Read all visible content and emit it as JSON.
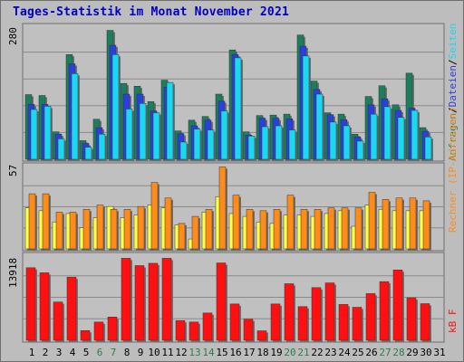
{
  "title": "Tages-Statistik im Monat November 2021",
  "colors": {
    "anfragen": "#1b7f5e",
    "dateien": "#2a3fe0",
    "seiten": "#1ad8f0",
    "rechner": "#ffff44",
    "besuche": "#ff8c1a",
    "kbf": "#ff0f0f",
    "weekend_day": "#2a7f4a",
    "weekday": "#000000"
  },
  "right_labels": {
    "top": [
      "Anfragen",
      "/",
      "Dateien",
      "/",
      "Seiten"
    ],
    "middle": "Rechner (IP-Adressen)",
    "bottom": "kB F"
  },
  "chart_data": [
    {
      "type": "bar",
      "ymax_label": "280",
      "ylim": [
        0,
        280
      ],
      "categories": [
        "1",
        "2",
        "3",
        "4",
        "5",
        "6",
        "7",
        "8",
        "9",
        "10",
        "11",
        "12",
        "13",
        "14",
        "15",
        "16",
        "17",
        "18",
        "19",
        "20",
        "21",
        "22",
        "23",
        "24",
        "25",
        "26",
        "27",
        "28",
        "29",
        "30"
      ],
      "weekend": [
        "6",
        "7",
        "13",
        "14",
        "20",
        "21",
        "27",
        "28"
      ],
      "series": [
        {
          "name": "Anfragen",
          "values": [
            139,
            137,
            59,
            225,
            40,
            86,
            277,
            163,
            157,
            124,
            170,
            61,
            84,
            92,
            140,
            235,
            59,
            94,
            95,
            97,
            267,
            168,
            100,
            97,
            54,
            135,
            158,
            117,
            185,
            68
          ]
        },
        {
          "name": "Dateien",
          "values": [
            118,
            118,
            54,
            205,
            34,
            68,
            245,
            140,
            140,
            104,
            155,
            55,
            72,
            84,
            125,
            225,
            52,
            88,
            88,
            87,
            243,
            150,
            96,
            85,
            48,
            117,
            130,
            105,
            110,
            60
          ]
        },
        {
          "name": "Seiten",
          "values": [
            107,
            114,
            44,
            184,
            26,
            54,
            225,
            108,
            120,
            100,
            165,
            37,
            65,
            63,
            104,
            218,
            50,
            70,
            72,
            63,
            222,
            140,
            80,
            72,
            39,
            97,
            113,
            90,
            105,
            48
          ]
        }
      ]
    },
    {
      "type": "bar",
      "ymax_label": "57",
      "ylim": [
        0,
        57
      ],
      "categories": [
        "1",
        "2",
        "3",
        "4",
        "5",
        "6",
        "7",
        "8",
        "9",
        "10",
        "11",
        "12",
        "13",
        "14",
        "15",
        "16",
        "17",
        "18",
        "19",
        "20",
        "21",
        "22",
        "23",
        "24",
        "25",
        "26",
        "27",
        "28",
        "29",
        "30"
      ],
      "series": [
        {
          "name": "Rechner",
          "values": [
            29,
            27,
            19,
            25,
            15,
            22,
            30,
            22,
            24,
            31,
            29,
            17,
            7,
            26,
            37,
            25,
            23,
            19,
            18,
            24,
            24,
            23,
            25,
            27,
            16,
            31,
            28,
            27,
            27,
            27
          ]
        },
        {
          "name": "Besuche",
          "values": [
            39,
            39,
            26,
            26,
            28,
            31,
            28,
            28,
            30,
            47,
            36,
            18,
            23,
            28,
            58,
            38,
            28,
            27,
            28,
            38,
            28,
            28,
            29,
            29,
            29,
            40,
            35,
            36,
            36,
            34
          ]
        }
      ]
    },
    {
      "type": "bar",
      "ymax_label": "13918",
      "ylim": [
        0,
        13918
      ],
      "categories": [
        "1",
        "2",
        "3",
        "4",
        "5",
        "6",
        "7",
        "8",
        "9",
        "10",
        "11",
        "12",
        "13",
        "14",
        "15",
        "16",
        "17",
        "18",
        "19",
        "20",
        "21",
        "22",
        "23",
        "24",
        "25",
        "26",
        "27",
        "28",
        "29",
        "30"
      ],
      "series": [
        {
          "name": "kB F",
          "values": [
            12260,
            11410,
            6470,
            10680,
            1640,
            3080,
            3930,
            13860,
            12620,
            13010,
            13860,
            3330,
            3080,
            4610,
            13070,
            6140,
            3560,
            1600,
            6140,
            9560,
            5690,
            8900,
            9700,
            6060,
            5580,
            7890,
            9920,
            11890,
            7180,
            6190
          ]
        }
      ]
    }
  ],
  "x_labels": [
    "1",
    "2",
    "3",
    "4",
    "5",
    "6",
    "7",
    "8",
    "9",
    "10",
    "11",
    "12",
    "13",
    "14",
    "15",
    "16",
    "17",
    "18",
    "19",
    "20",
    "21",
    "22",
    "23",
    "24",
    "25",
    "26",
    "27",
    "28",
    "29",
    "30",
    "31"
  ]
}
